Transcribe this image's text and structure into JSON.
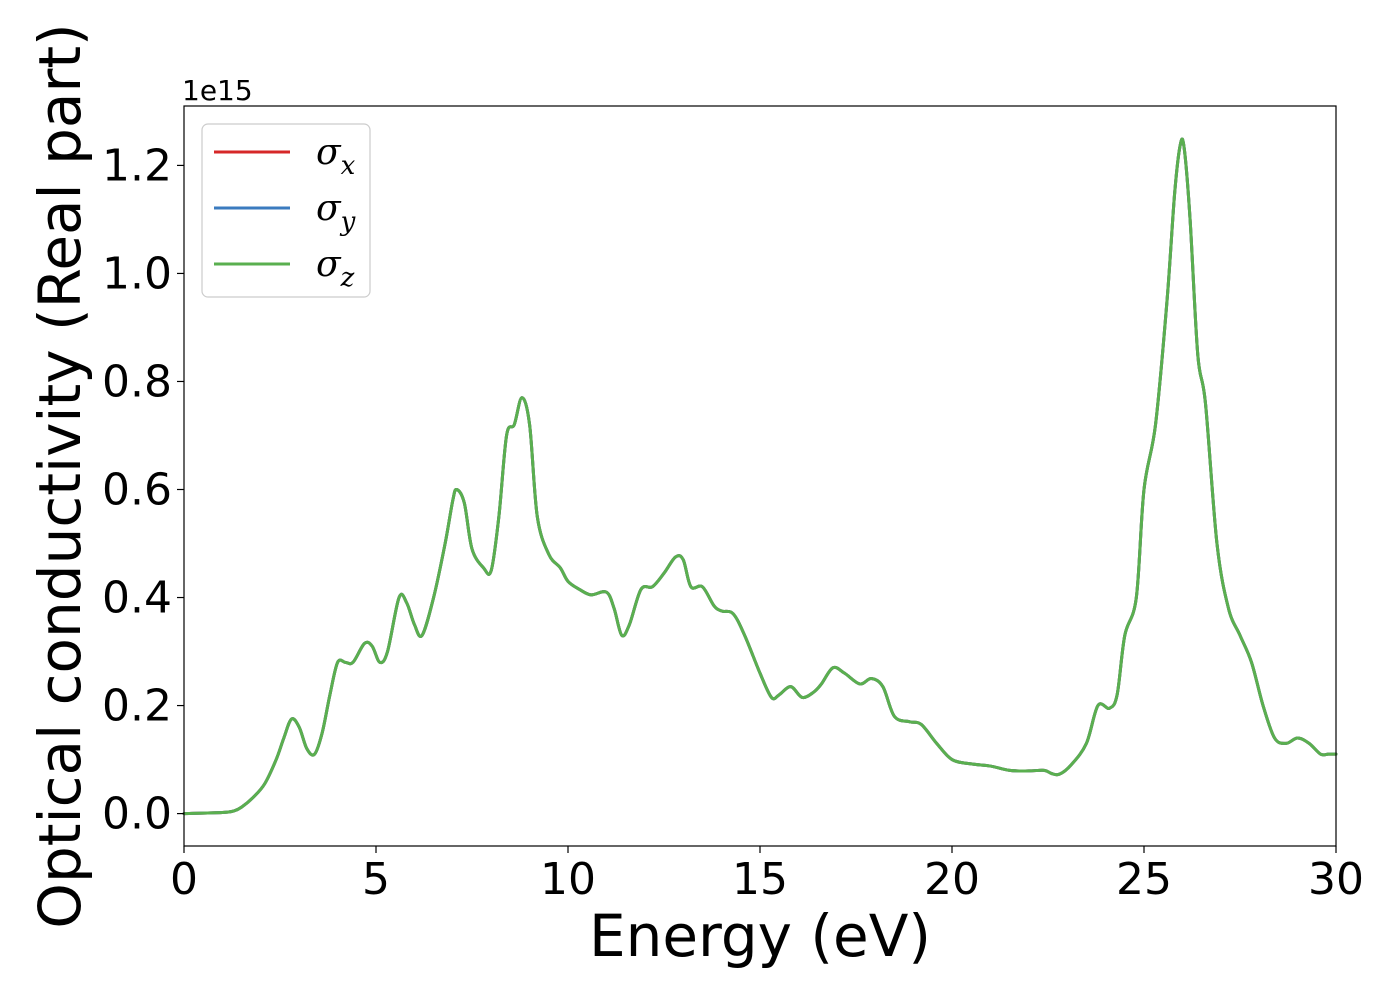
{
  "chart_data": {
    "type": "line",
    "xlabel": "Energy (eV)",
    "ylabel": "Optical conductivity (Real part)",
    "y_offset_label": "1e15",
    "xlim": [
      0,
      30
    ],
    "ylim": [
      -0.06,
      1.31
    ],
    "xticks": [
      0,
      5,
      10,
      15,
      20,
      25,
      30
    ],
    "xtick_labels": [
      "0",
      "5",
      "10",
      "15",
      "20",
      "25",
      "30"
    ],
    "yticks": [
      0.0,
      0.2,
      0.4,
      0.6,
      0.8,
      1.0,
      1.2
    ],
    "ytick_labels": [
      "0.0",
      "0.2",
      "0.4",
      "0.6",
      "0.8",
      "1.0",
      "1.2"
    ],
    "grid": false,
    "legend_position": "top-left",
    "series": [
      {
        "name": "σx",
        "label_base": "σ",
        "label_sub": "x",
        "color": "#d62728",
        "x": [
          0,
          1,
          1.3,
          1.5,
          1.8,
          2.1,
          2.4,
          2.6,
          2.8,
          3.0,
          3.2,
          3.4,
          3.6,
          3.8,
          4.0,
          4.2,
          4.4,
          4.7,
          4.9,
          5.1,
          5.3,
          5.6,
          5.8,
          6.0,
          6.2,
          6.5,
          6.8,
          7.0,
          7.1,
          7.3,
          7.5,
          7.8,
          8.0,
          8.2,
          8.4,
          8.6,
          8.8,
          9.0,
          9.2,
          9.5,
          9.8,
          10.0,
          10.3,
          10.6,
          11.0,
          11.2,
          11.4,
          11.6,
          11.9,
          12.2,
          12.5,
          12.8,
          13.0,
          13.2,
          13.5,
          13.8,
          14.0,
          14.3,
          14.6,
          15.0,
          15.3,
          15.5,
          15.8,
          16.1,
          16.4,
          16.6,
          16.9,
          17.2,
          17.6,
          17.9,
          18.2,
          18.5,
          18.9,
          19.2,
          19.6,
          20.0,
          20.5,
          21.0,
          21.5,
          22.0,
          22.4,
          22.6,
          22.8,
          23.1,
          23.5,
          23.8,
          24.1,
          24.3,
          24.5,
          24.8,
          25.0,
          25.3,
          25.6,
          25.8,
          25.95,
          26.05,
          26.2,
          26.4,
          26.6,
          26.9,
          27.2,
          27.5,
          27.8,
          28.1,
          28.4,
          28.7,
          29.0,
          29.3,
          29.6,
          29.8,
          30
        ],
        "y": [
          0,
          0.002,
          0.005,
          0.012,
          0.03,
          0.055,
          0.1,
          0.14,
          0.175,
          0.16,
          0.12,
          0.11,
          0.15,
          0.22,
          0.28,
          0.28,
          0.28,
          0.315,
          0.31,
          0.28,
          0.3,
          0.4,
          0.39,
          0.35,
          0.33,
          0.4,
          0.5,
          0.58,
          0.6,
          0.575,
          0.49,
          0.455,
          0.45,
          0.55,
          0.7,
          0.72,
          0.77,
          0.72,
          0.55,
          0.48,
          0.455,
          0.43,
          0.415,
          0.405,
          0.41,
          0.38,
          0.33,
          0.35,
          0.415,
          0.42,
          0.445,
          0.475,
          0.47,
          0.42,
          0.42,
          0.385,
          0.375,
          0.37,
          0.33,
          0.26,
          0.215,
          0.22,
          0.235,
          0.215,
          0.225,
          0.24,
          0.27,
          0.26,
          0.24,
          0.25,
          0.235,
          0.18,
          0.17,
          0.165,
          0.13,
          0.1,
          0.092,
          0.088,
          0.08,
          0.079,
          0.08,
          0.074,
          0.073,
          0.09,
          0.13,
          0.2,
          0.195,
          0.22,
          0.33,
          0.4,
          0.6,
          0.72,
          0.95,
          1.15,
          1.24,
          1.23,
          1.1,
          0.85,
          0.76,
          0.5,
          0.38,
          0.33,
          0.28,
          0.2,
          0.14,
          0.13,
          0.14,
          0.13,
          0.11,
          0.11,
          0.11
        ]
      },
      {
        "name": "σy",
        "label_base": "σ",
        "label_sub": "y",
        "color": "#3b7bbf",
        "x": [
          0,
          1,
          1.3,
          1.5,
          1.8,
          2.1,
          2.4,
          2.6,
          2.8,
          3.0,
          3.2,
          3.4,
          3.6,
          3.8,
          4.0,
          4.2,
          4.4,
          4.7,
          4.9,
          5.1,
          5.3,
          5.6,
          5.8,
          6.0,
          6.2,
          6.5,
          6.8,
          7.0,
          7.1,
          7.3,
          7.5,
          7.8,
          8.0,
          8.2,
          8.4,
          8.6,
          8.8,
          9.0,
          9.2,
          9.5,
          9.8,
          10.0,
          10.3,
          10.6,
          11.0,
          11.2,
          11.4,
          11.6,
          11.9,
          12.2,
          12.5,
          12.8,
          13.0,
          13.2,
          13.5,
          13.8,
          14.0,
          14.3,
          14.6,
          15.0,
          15.3,
          15.5,
          15.8,
          16.1,
          16.4,
          16.6,
          16.9,
          17.2,
          17.6,
          17.9,
          18.2,
          18.5,
          18.9,
          19.2,
          19.6,
          20.0,
          20.5,
          21.0,
          21.5,
          22.0,
          22.4,
          22.6,
          22.8,
          23.1,
          23.5,
          23.8,
          24.1,
          24.3,
          24.5,
          24.8,
          25.0,
          25.3,
          25.6,
          25.8,
          25.95,
          26.05,
          26.2,
          26.4,
          26.6,
          26.9,
          27.2,
          27.5,
          27.8,
          28.1,
          28.4,
          28.7,
          29.0,
          29.3,
          29.6,
          29.8,
          30
        ],
        "y": [
          0,
          0.002,
          0.005,
          0.012,
          0.03,
          0.055,
          0.1,
          0.14,
          0.175,
          0.16,
          0.12,
          0.11,
          0.15,
          0.22,
          0.28,
          0.28,
          0.28,
          0.315,
          0.31,
          0.28,
          0.3,
          0.4,
          0.39,
          0.35,
          0.33,
          0.4,
          0.5,
          0.58,
          0.6,
          0.575,
          0.49,
          0.455,
          0.45,
          0.55,
          0.7,
          0.72,
          0.77,
          0.72,
          0.55,
          0.48,
          0.455,
          0.43,
          0.415,
          0.405,
          0.41,
          0.38,
          0.33,
          0.35,
          0.415,
          0.42,
          0.445,
          0.475,
          0.47,
          0.42,
          0.42,
          0.385,
          0.375,
          0.37,
          0.33,
          0.26,
          0.215,
          0.22,
          0.235,
          0.215,
          0.225,
          0.24,
          0.27,
          0.26,
          0.24,
          0.25,
          0.235,
          0.18,
          0.17,
          0.165,
          0.13,
          0.1,
          0.092,
          0.088,
          0.08,
          0.079,
          0.08,
          0.074,
          0.073,
          0.09,
          0.13,
          0.2,
          0.195,
          0.22,
          0.33,
          0.4,
          0.6,
          0.72,
          0.95,
          1.15,
          1.24,
          1.23,
          1.1,
          0.85,
          0.76,
          0.5,
          0.38,
          0.33,
          0.28,
          0.2,
          0.14,
          0.13,
          0.14,
          0.13,
          0.11,
          0.11,
          0.11
        ]
      },
      {
        "name": "σz",
        "label_base": "σ",
        "label_sub": "z",
        "color": "#5aaf4f",
        "x": [
          0,
          1,
          1.3,
          1.5,
          1.8,
          2.1,
          2.4,
          2.6,
          2.8,
          3.0,
          3.2,
          3.4,
          3.6,
          3.8,
          4.0,
          4.2,
          4.4,
          4.7,
          4.9,
          5.1,
          5.3,
          5.6,
          5.8,
          6.0,
          6.2,
          6.5,
          6.8,
          7.0,
          7.1,
          7.3,
          7.5,
          7.8,
          8.0,
          8.2,
          8.4,
          8.6,
          8.8,
          9.0,
          9.2,
          9.5,
          9.8,
          10.0,
          10.3,
          10.6,
          11.0,
          11.2,
          11.4,
          11.6,
          11.9,
          12.2,
          12.5,
          12.8,
          13.0,
          13.2,
          13.5,
          13.8,
          14.0,
          14.3,
          14.6,
          15.0,
          15.3,
          15.5,
          15.8,
          16.1,
          16.4,
          16.6,
          16.9,
          17.2,
          17.6,
          17.9,
          18.2,
          18.5,
          18.9,
          19.2,
          19.6,
          20.0,
          20.5,
          21.0,
          21.5,
          22.0,
          22.4,
          22.6,
          22.8,
          23.1,
          23.5,
          23.8,
          24.1,
          24.3,
          24.5,
          24.8,
          25.0,
          25.3,
          25.6,
          25.8,
          25.95,
          26.05,
          26.2,
          26.4,
          26.6,
          26.9,
          27.2,
          27.5,
          27.8,
          28.1,
          28.4,
          28.7,
          29.0,
          29.3,
          29.6,
          29.8,
          30
        ],
        "y": [
          0,
          0.002,
          0.005,
          0.012,
          0.03,
          0.055,
          0.1,
          0.14,
          0.175,
          0.16,
          0.12,
          0.11,
          0.15,
          0.22,
          0.28,
          0.28,
          0.28,
          0.315,
          0.31,
          0.28,
          0.3,
          0.4,
          0.39,
          0.35,
          0.33,
          0.4,
          0.5,
          0.58,
          0.6,
          0.575,
          0.49,
          0.455,
          0.45,
          0.55,
          0.7,
          0.72,
          0.77,
          0.72,
          0.55,
          0.48,
          0.455,
          0.43,
          0.415,
          0.405,
          0.41,
          0.38,
          0.33,
          0.35,
          0.415,
          0.42,
          0.445,
          0.475,
          0.47,
          0.42,
          0.42,
          0.385,
          0.375,
          0.37,
          0.33,
          0.26,
          0.215,
          0.22,
          0.235,
          0.215,
          0.225,
          0.24,
          0.27,
          0.26,
          0.24,
          0.25,
          0.235,
          0.18,
          0.17,
          0.165,
          0.13,
          0.1,
          0.092,
          0.088,
          0.08,
          0.079,
          0.08,
          0.074,
          0.073,
          0.09,
          0.13,
          0.2,
          0.195,
          0.22,
          0.33,
          0.4,
          0.6,
          0.72,
          0.95,
          1.15,
          1.24,
          1.23,
          1.1,
          0.85,
          0.76,
          0.5,
          0.38,
          0.33,
          0.28,
          0.2,
          0.14,
          0.13,
          0.14,
          0.13,
          0.11,
          0.11,
          0.11
        ]
      }
    ]
  }
}
